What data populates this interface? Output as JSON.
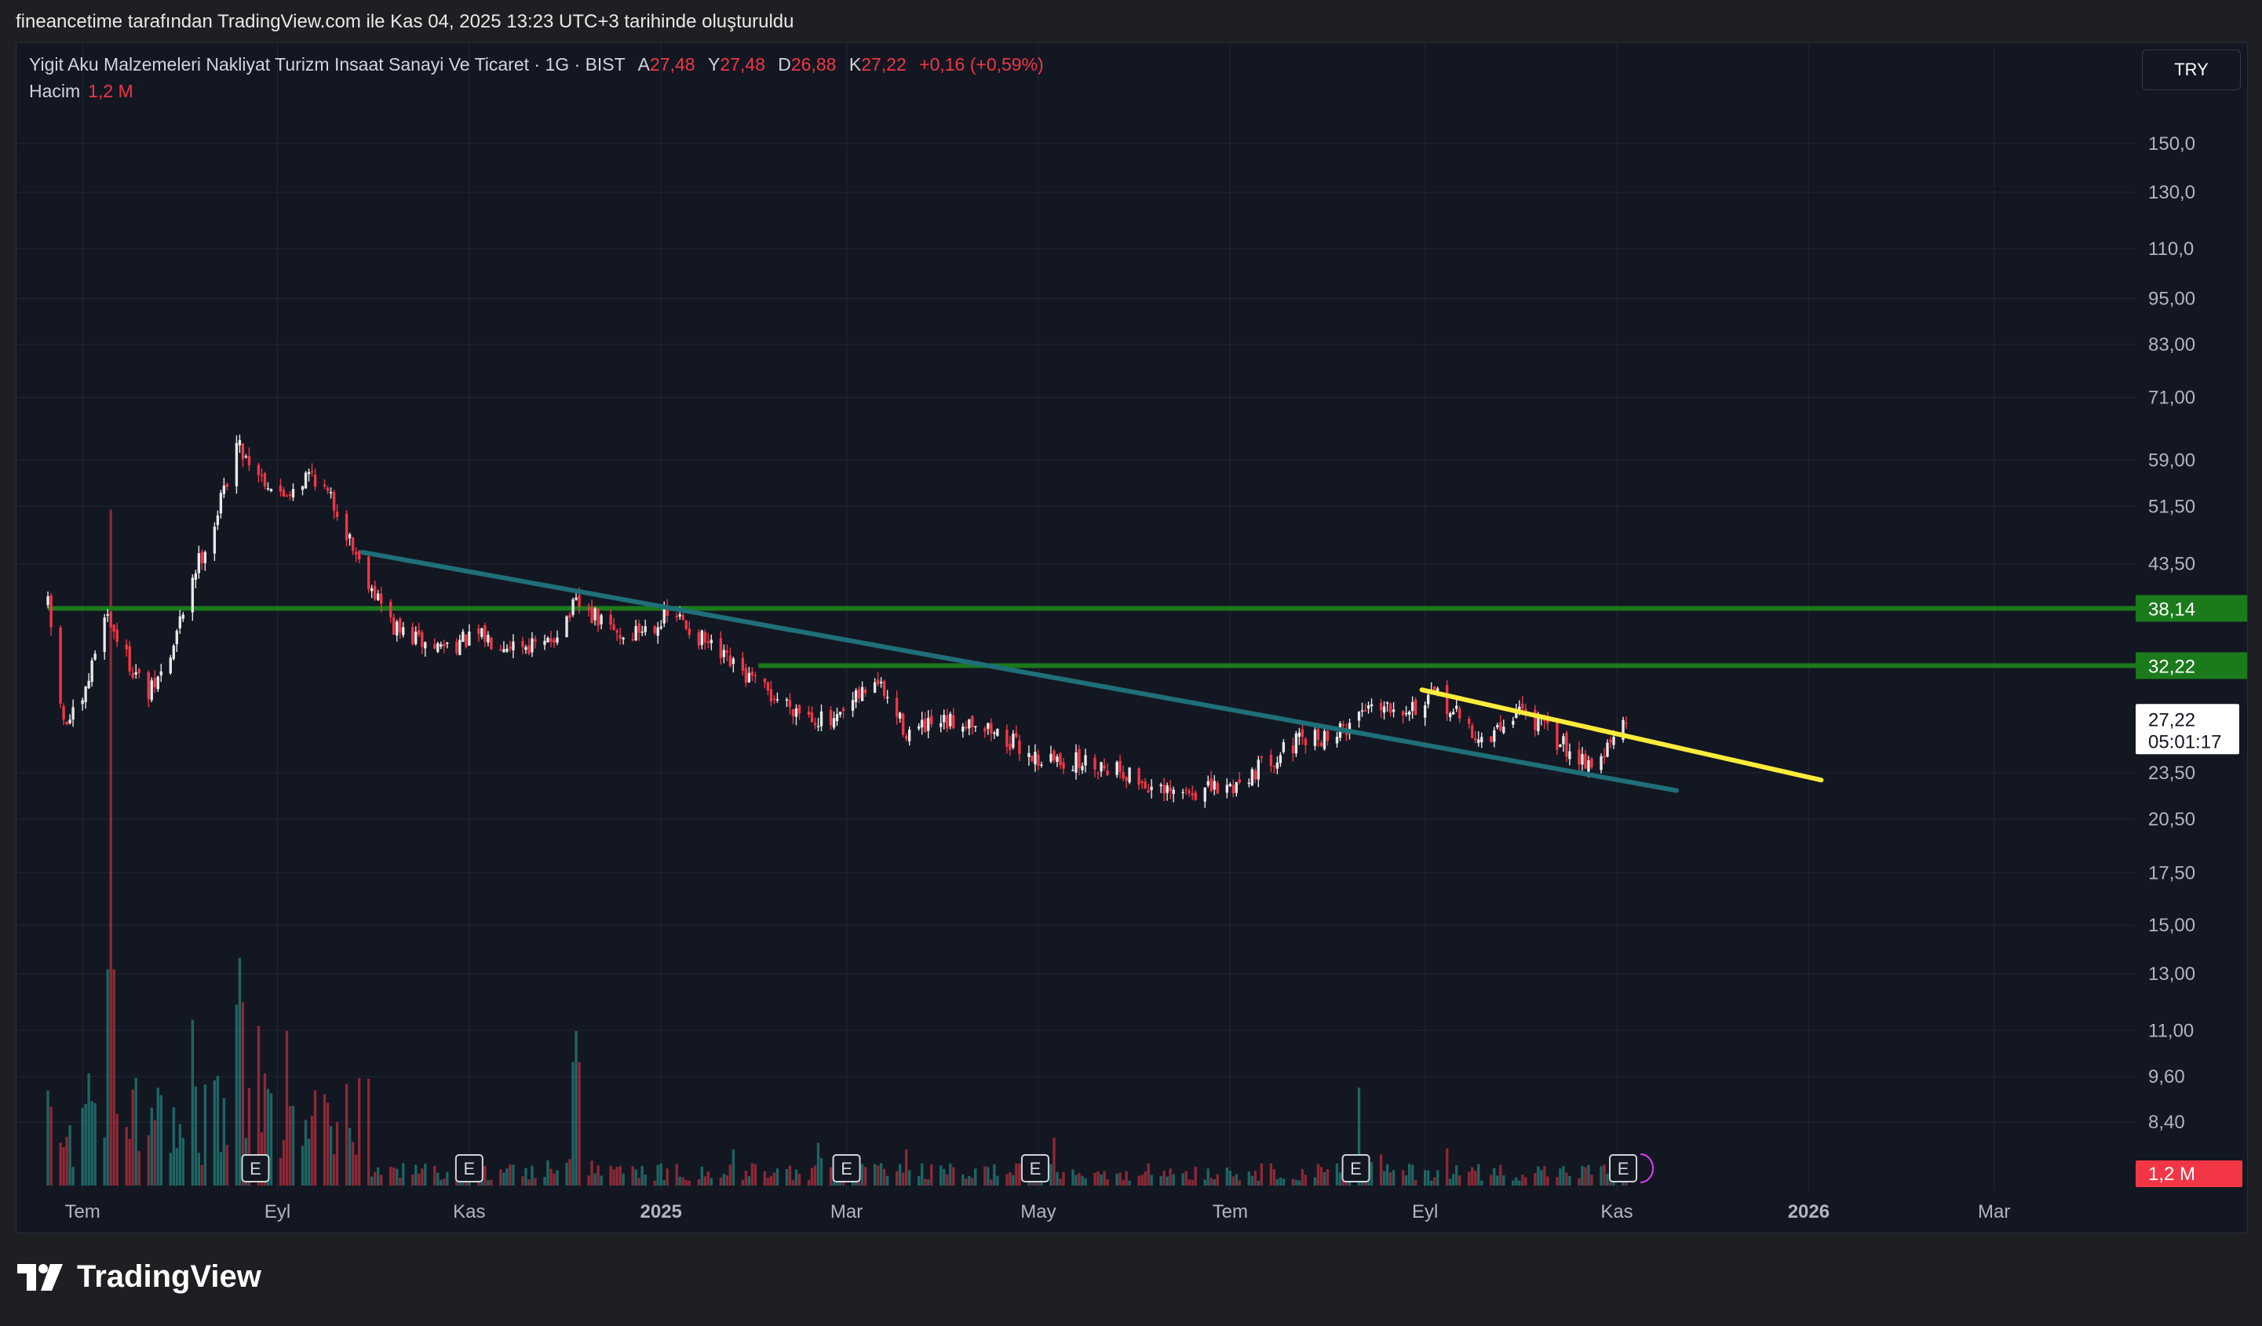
{
  "header": {
    "attribution": "fineancetime tarafından TradingView.com ile Kas 04, 2025 13:23 UTC+3 tarihinde oluşturuldu"
  },
  "legend": {
    "symbol": "Yigit Aku Malzemeleri Nakliyat Turizm Insaat Sanayi Ve Ticaret · 1G · BIST",
    "open_label": "A",
    "open": "27,48",
    "high_label": "Y",
    "high": "27,48",
    "low_label": "D",
    "low": "26,88",
    "close_label": "K",
    "close": "27,22",
    "change": "+0,16 (+0,59%)",
    "volume_label": "Hacim",
    "volume": "1,2 M"
  },
  "currency_button": "TRY",
  "brand": "TradingView",
  "colors": {
    "background": "#131722",
    "grid": "#232734",
    "up_candle": "#e8e8e8",
    "down_candle": "#f23645",
    "up_volume": "#26a69a",
    "down_volume": "#f23645",
    "support_resistance": "#1b7a1b",
    "lower_trendline": "#1f6f78",
    "upper_trendline": "#ffeb3b"
  },
  "chart_data": {
    "type": "candlestick",
    "y_scale": "log",
    "ylim": [
      7.8,
      160
    ],
    "xlim": [
      "2024-06-10",
      "2026-04-15"
    ],
    "y_ticks": [
      {
        "v": 150,
        "label": "150,0"
      },
      {
        "v": 130,
        "label": "130,0"
      },
      {
        "v": 110,
        "label": "110,0"
      },
      {
        "v": 95,
        "label": "95,00"
      },
      {
        "v": 83,
        "label": "83,00"
      },
      {
        "v": 71,
        "label": "71,00"
      },
      {
        "v": 59,
        "label": "59,00"
      },
      {
        "v": 51.5,
        "label": "51,50"
      },
      {
        "v": 43.5,
        "label": "43,50"
      },
      {
        "v": 23.5,
        "label": "23,50"
      },
      {
        "v": 20.5,
        "label": "20,50"
      },
      {
        "v": 17.5,
        "label": "17,50"
      },
      {
        "v": 15,
        "label": "15,00"
      },
      {
        "v": 13,
        "label": "13,00"
      },
      {
        "v": 11,
        "label": "11,00"
      },
      {
        "v": 9.6,
        "label": "9,60"
      },
      {
        "v": 8.4,
        "label": "8,40"
      }
    ],
    "x_ticks": [
      {
        "date": "2024-07-01",
        "label": "Tem",
        "bold": false
      },
      {
        "date": "2024-09-01",
        "label": "Eyl",
        "bold": false
      },
      {
        "date": "2024-11-01",
        "label": "Kas",
        "bold": false
      },
      {
        "date": "2025-01-01",
        "label": "2025",
        "bold": true
      },
      {
        "date": "2025-03-01",
        "label": "Mar",
        "bold": false
      },
      {
        "date": "2025-05-01",
        "label": "May",
        "bold": false
      },
      {
        "date": "2025-07-01",
        "label": "Tem",
        "bold": false
      },
      {
        "date": "2025-09-01",
        "label": "Eyl",
        "bold": false
      },
      {
        "date": "2025-11-01",
        "label": "Kas",
        "bold": false
      },
      {
        "date": "2026-01-01",
        "label": "2026",
        "bold": true
      },
      {
        "date": "2026-03-01",
        "label": "Mar",
        "bold": false
      }
    ],
    "price_path": [
      {
        "date": "2024-06-20",
        "close": 38.5
      },
      {
        "date": "2024-06-25",
        "close": 27.0
      },
      {
        "date": "2024-07-01",
        "close": 28.5
      },
      {
        "date": "2024-07-08",
        "close": 38.0
      },
      {
        "date": "2024-07-15",
        "close": 33.0
      },
      {
        "date": "2024-07-22",
        "close": 29.5
      },
      {
        "date": "2024-07-29",
        "close": 33.0
      },
      {
        "date": "2024-08-05",
        "close": 42.0
      },
      {
        "date": "2024-08-12",
        "close": 49.0
      },
      {
        "date": "2024-08-19",
        "close": 62.0
      },
      {
        "date": "2024-08-26",
        "close": 57.0
      },
      {
        "date": "2024-09-02",
        "close": 53.0
      },
      {
        "date": "2024-09-12",
        "close": 57.0
      },
      {
        "date": "2024-09-20",
        "close": 51.0
      },
      {
        "date": "2024-09-28",
        "close": 43.0
      },
      {
        "date": "2024-10-08",
        "close": 36.0
      },
      {
        "date": "2024-10-20",
        "close": 34.0
      },
      {
        "date": "2024-11-05",
        "close": 35.0
      },
      {
        "date": "2024-11-25",
        "close": 34.0
      },
      {
        "date": "2024-12-05",
        "close": 38.5
      },
      {
        "date": "2024-12-20",
        "close": 35.0
      },
      {
        "date": "2025-01-05",
        "close": 37.5
      },
      {
        "date": "2025-01-20",
        "close": 33.0
      },
      {
        "date": "2025-02-05",
        "close": 29.5
      },
      {
        "date": "2025-02-25",
        "close": 27.0
      },
      {
        "date": "2025-03-10",
        "close": 31.0
      },
      {
        "date": "2025-03-20",
        "close": 26.5
      },
      {
        "date": "2025-04-10",
        "close": 27.5
      },
      {
        "date": "2025-05-01",
        "close": 24.5
      },
      {
        "date": "2025-05-25",
        "close": 24.0
      },
      {
        "date": "2025-06-10",
        "close": 22.0
      },
      {
        "date": "2025-07-01",
        "close": 22.5
      },
      {
        "date": "2025-07-20",
        "close": 25.5
      },
      {
        "date": "2025-08-05",
        "close": 26.5
      },
      {
        "date": "2025-08-15",
        "close": 29.0
      },
      {
        "date": "2025-08-30",
        "close": 28.5
      },
      {
        "date": "2025-09-05",
        "close": 29.5
      },
      {
        "date": "2025-09-20",
        "close": 25.5
      },
      {
        "date": "2025-10-01",
        "close": 28.5
      },
      {
        "date": "2025-10-15",
        "close": 25.5
      },
      {
        "date": "2025-10-25",
        "close": 24.0
      },
      {
        "date": "2025-11-04",
        "close": 27.22
      }
    ],
    "volume_spikes": [
      {
        "date": "2024-07-10",
        "value": 4.2
      },
      {
        "date": "2024-08-20",
        "value": 3.5
      },
      {
        "date": "2024-08-25",
        "value": 3.1
      },
      {
        "date": "2024-12-05",
        "value": 2.4
      },
      {
        "date": "2025-08-10",
        "value": 1.9
      }
    ],
    "volume_ylim": [
      0,
      4.4
    ],
    "earnings_markers": [
      "2024-08-25",
      "2024-11-01",
      "2025-03-01",
      "2025-04-30",
      "2025-08-10",
      "2025-11-03"
    ],
    "horizontal_levels": [
      {
        "value": 38.14,
        "label": "38,14",
        "from": "2024-06-20"
      },
      {
        "value": 32.22,
        "label": "32,22",
        "from": "2025-02-01"
      }
    ],
    "trendlines": [
      {
        "name": "lower",
        "from": {
          "date": "2024-09-28",
          "price": 45.0
        },
        "to": {
          "date": "2025-11-20",
          "price": 22.3
        }
      },
      {
        "name": "upper",
        "from": {
          "date": "2025-08-31",
          "price": 30.0
        },
        "to": {
          "date": "2026-01-05",
          "price": 23.0
        }
      }
    ],
    "last_price": {
      "value": 27.22,
      "label": "27,22",
      "countdown": "05:01:17"
    },
    "volume_badge": "1,2 M"
  }
}
